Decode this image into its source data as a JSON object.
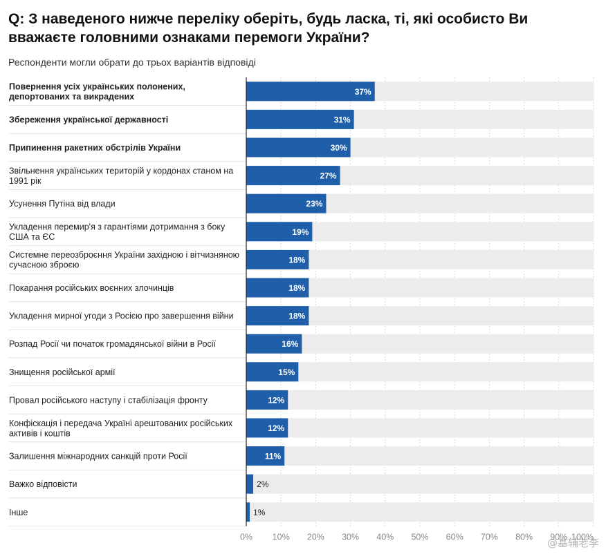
{
  "title": "Q: З наведеного нижче переліку оберіть, будь ласка, ті, які особисто Ви вважаєте головними ознаками перемоги України?",
  "subtitle": "Респонденти могли обрати до трьох варіантів відповіді",
  "watermark": "@基辅老李",
  "chart_data": {
    "type": "bar",
    "orientation": "horizontal",
    "categories": [
      "Повернення усіх українських полонених, депортованих та викрадених",
      "Збереження української державності",
      "Припинення ракетних обстрілів України",
      "Звільнення українських територій у кордонах станом на 1991 рік",
      "Усунення Путіна від влади",
      "Укладення перемир'я з гарантіями дотримання з боку США та ЄС",
      "Системне переозброєння України західною і вітчизняною сучасною зброєю",
      "Покарання російських воєнних злочинців",
      "Укладення мирної угоди з Росією про завершення війни",
      "Розпад Росії чи початок громадянської війни в Росії",
      "Знищення російської армії",
      "Провал російського наступу і стабілізація фронту",
      "Конфіскація і передача Україні арештованих російських активів і коштів",
      "Залишення міжнародних санкцій проти Росії",
      "Важко відповісти",
      "Інше"
    ],
    "values": [
      37,
      31,
      30,
      27,
      23,
      19,
      18,
      18,
      18,
      16,
      15,
      12,
      12,
      11,
      2,
      1
    ],
    "value_labels": [
      "37%",
      "31%",
      "30%",
      "27%",
      "23%",
      "19%",
      "18%",
      "18%",
      "18%",
      "16%",
      "15%",
      "12%",
      "12%",
      "11%",
      "2%",
      "1%"
    ],
    "bold_categories": [
      0,
      1,
      2
    ],
    "x_ticks": [
      "0%",
      "10%",
      "20%",
      "30%",
      "40%",
      "50%",
      "60%",
      "70%",
      "80%",
      "90%",
      "100%"
    ],
    "xlim": [
      0,
      100
    ],
    "bar_color": "#1f5ea8",
    "track_color": "#ececec",
    "grid": true
  }
}
